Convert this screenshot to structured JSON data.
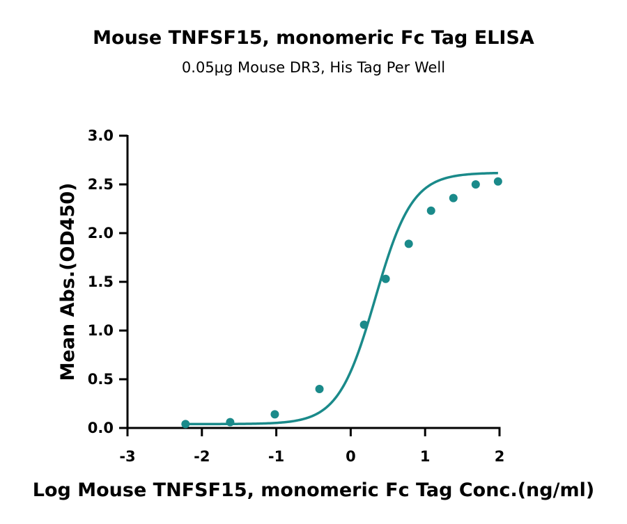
{
  "chart_data": {
    "type": "line",
    "title": "Mouse TNFSF15, monomeric Fc Tag ELISA",
    "subtitle": "0.05μg Mouse DR3, His Tag Per Well",
    "xlabel": "Log Mouse TNFSF15, monomeric Fc Tag Conc.(ng/ml)",
    "ylabel": "Mean Abs.(OD450)",
    "xlim": [
      -3,
      2
    ],
    "ylim": [
      0,
      3.0
    ],
    "x_ticks": [
      "-3",
      "-2",
      "-1",
      "0",
      "1",
      "2"
    ],
    "y_ticks": [
      "0.0",
      "0.5",
      "1.0",
      "1.5",
      "2.0",
      "2.5",
      "3.0"
    ],
    "grid": false,
    "series_color": "#1a8a8a",
    "points": {
      "x": [
        -2.22,
        -1.62,
        -1.02,
        -0.42,
        0.18,
        0.47,
        0.78,
        1.08,
        1.38,
        1.68,
        1.98
      ],
      "y": [
        0.04,
        0.06,
        0.14,
        0.4,
        1.06,
        1.53,
        1.89,
        2.23,
        2.36,
        2.5,
        2.53
      ]
    },
    "fit": {
      "bottom": 0.04,
      "top": 2.62,
      "logEC50": 0.33,
      "hill": 1.75
    }
  }
}
